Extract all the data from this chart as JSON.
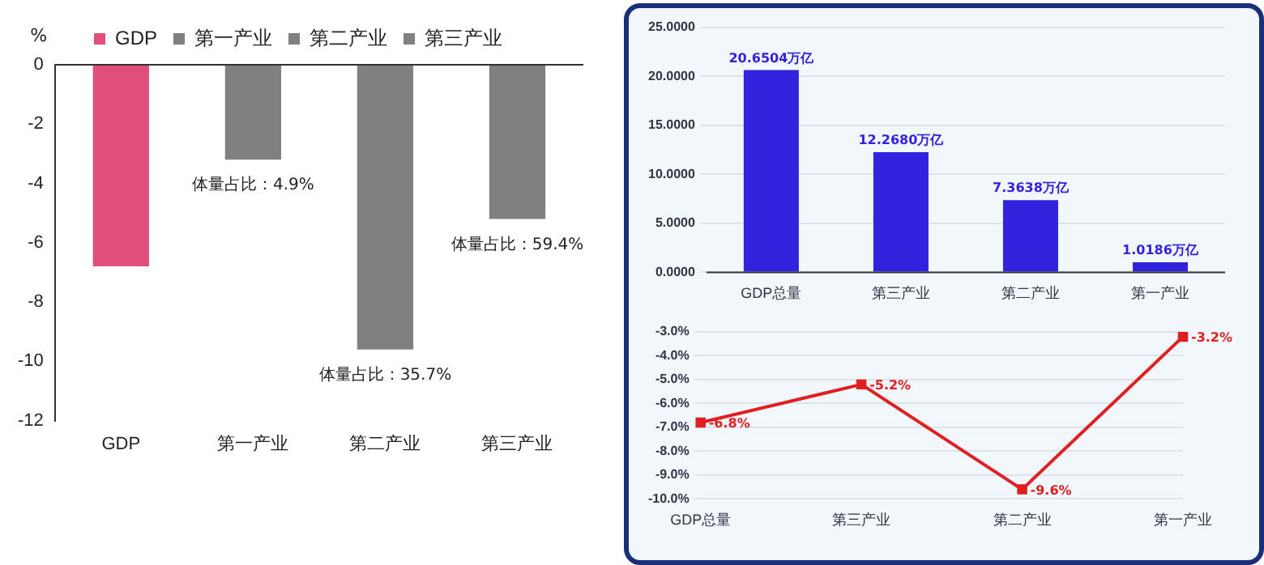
{
  "chart_data": [
    {
      "type": "bar",
      "ylabel": "%",
      "categories": [
        "GDP",
        "第一产业",
        "第二产业",
        "第三产业"
      ],
      "series": [
        {
          "name": "GDP",
          "color": "#e0507a",
          "values": [
            -6.8,
            null,
            null,
            null
          ]
        },
        {
          "name": "第一产业",
          "color": "#808080",
          "values": [
            null,
            -3.2,
            null,
            null
          ]
        },
        {
          "name": "第二产业",
          "color": "#808080",
          "values": [
            null,
            null,
            -9.6,
            null
          ]
        },
        {
          "name": "第三产业",
          "color": "#808080",
          "values": [
            null,
            null,
            null,
            -5.2
          ]
        }
      ],
      "ylim": [
        -12,
        0
      ],
      "yticks": [
        -12,
        -10,
        -8,
        -6,
        -4,
        -2,
        0
      ],
      "grid": false,
      "legend": "top",
      "annotations": [
        {
          "text": "体量占比：4.9%",
          "x": "第一产业",
          "y": -3.2
        },
        {
          "text": "体量占比：35.7%",
          "x": "第二产业",
          "y": -9.6
        },
        {
          "text": "体量占比：59.4%",
          "x": "第三产业",
          "y": -5.2
        }
      ]
    },
    {
      "type": "bar",
      "categories": [
        "GDP总量",
        "第三产业",
        "第二产业",
        "第一产业"
      ],
      "values": [
        20.6504,
        12.268,
        7.3638,
        1.0186
      ],
      "color": "#3322dd",
      "value_labels": [
        "20.6504万亿",
        "12.2680万亿",
        "7.3638万亿",
        "1.0186万亿"
      ],
      "ylim": [
        0,
        25
      ],
      "yticks": [
        {
          "value": 0,
          "label": "0.0000"
        },
        {
          "value": 5,
          "label": "5.0000"
        },
        {
          "value": 10,
          "label": "10.0000"
        },
        {
          "value": 15,
          "label": "15.0000"
        },
        {
          "value": 20,
          "label": "20.0000"
        },
        {
          "value": 25,
          "label": "25.0000"
        }
      ],
      "grid": "y"
    },
    {
      "type": "line",
      "categories": [
        "GDP总量",
        "第三产业",
        "第二产业",
        "第一产业"
      ],
      "values": [
        -6.8,
        -5.2,
        -9.6,
        -3.2
      ],
      "color": "#e02020",
      "marker": "square",
      "value_labels": [
        "-6.8%",
        "-5.2%",
        "-9.6%",
        "-3.2%"
      ],
      "ylim": [
        -10,
        -3
      ],
      "yticks": [
        {
          "value": -10,
          "label": "-10.0%"
        },
        {
          "value": -9,
          "label": "-9.0%"
        },
        {
          "value": -8,
          "label": "-8.0%"
        },
        {
          "value": -7,
          "label": "-7.0%"
        },
        {
          "value": -6,
          "label": "-6.0%"
        },
        {
          "value": -5,
          "label": "-5.0%"
        },
        {
          "value": -4,
          "label": "-4.0%"
        },
        {
          "value": -3,
          "label": "-3.0%"
        }
      ],
      "grid": "y"
    }
  ]
}
